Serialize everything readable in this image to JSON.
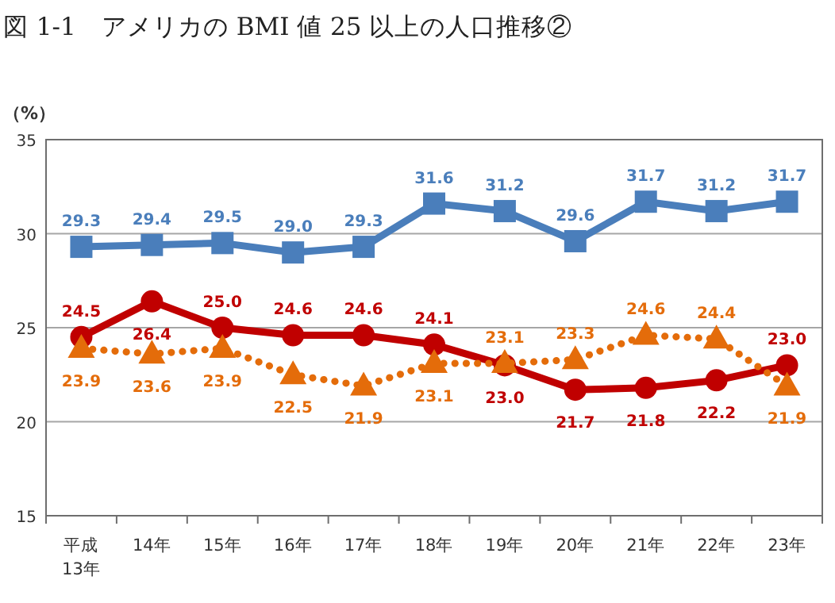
{
  "chart_data": {
    "type": "line",
    "title": "図 1-1　アメリカの BMI 値 25 以上の人口推移②",
    "ylabel": "（%）",
    "categories": [
      "平成13年",
      "14年",
      "15年",
      "16年",
      "17年",
      "18年",
      "19年",
      "20年",
      "21年",
      "22年",
      "23年"
    ],
    "series": [
      {
        "color": "#4a7ebb",
        "marker": "square",
        "line_style": "solid",
        "values": [
          29.3,
          29.4,
          29.5,
          29.0,
          29.3,
          31.6,
          31.2,
          29.6,
          31.7,
          31.2,
          31.7
        ],
        "value_labels": [
          "29.3",
          "29.4",
          "29.5",
          "29.0",
          "29.3",
          "31.6",
          "31.2",
          "29.6",
          "31.7",
          "31.2",
          "31.7"
        ]
      },
      {
        "color": "#c00000",
        "marker": "circle",
        "line_style": "solid",
        "values": [
          24.5,
          26.4,
          25.0,
          24.6,
          24.6,
          24.1,
          23.0,
          21.7,
          21.8,
          22.2,
          23.0
        ],
        "value_labels": [
          "24.5",
          "26.4",
          "25.0",
          "24.6",
          "24.6",
          "24.1",
          "23.0",
          "21.7",
          "21.8",
          "22.2",
          "23.0"
        ]
      },
      {
        "color": "#e46c0a",
        "marker": "triangle",
        "line_style": "dotted",
        "values": [
          23.9,
          23.6,
          23.9,
          22.5,
          21.9,
          23.1,
          23.1,
          23.3,
          24.6,
          24.4,
          21.9
        ],
        "value_labels": [
          "23.9",
          "23.6",
          "23.9",
          "22.5",
          "21.9",
          "23.1",
          "23.1",
          "23.3",
          "24.6",
          "24.4",
          "21.9"
        ]
      }
    ],
    "ylim": [
      15,
      35
    ],
    "yticks": [
      15,
      20,
      25,
      30,
      35
    ],
    "grid": "y"
  }
}
